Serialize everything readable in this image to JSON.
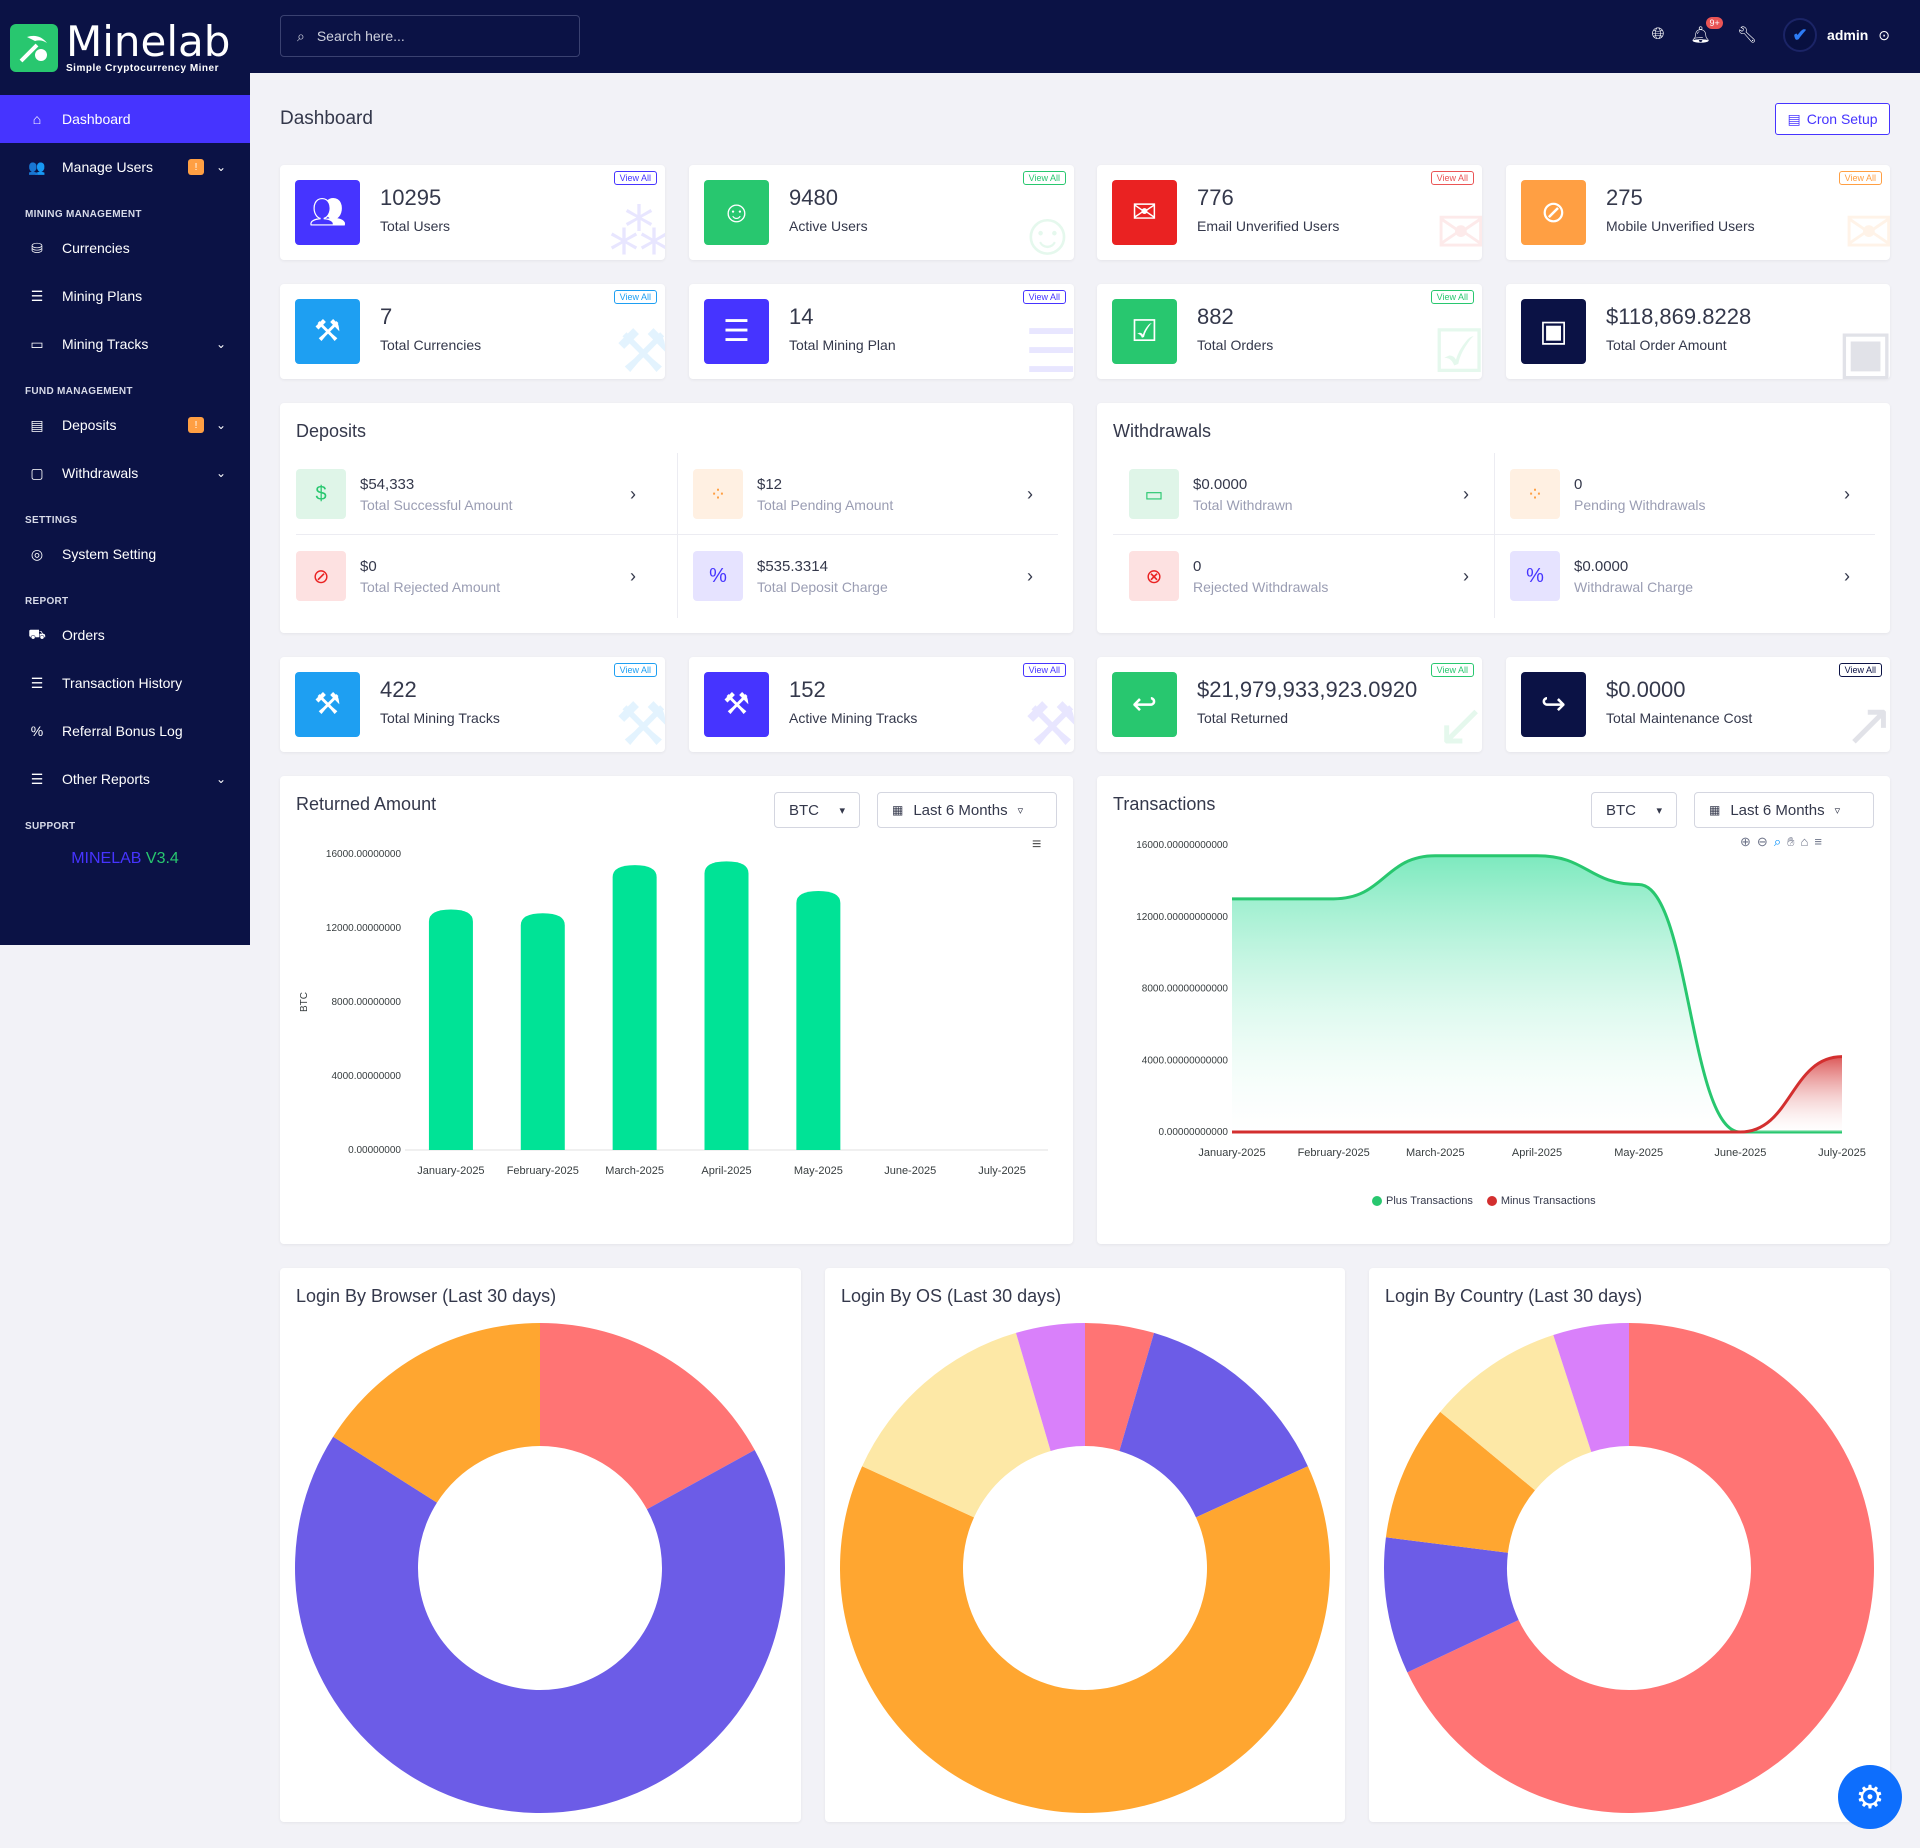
{
  "brand": {
    "name": "Minelab",
    "tagline": "Simple Cryptocurrency Miner",
    "version_name": "MINELAB",
    "version_num": "V3.4"
  },
  "sidebar": {
    "dashboard": "Dashboard",
    "manage_users": "Manage Users",
    "badge": "!",
    "sec_mining": "MINING MANAGEMENT",
    "currencies": "Currencies",
    "mining_plans": "Mining Plans",
    "mining_tracks": "Mining Tracks",
    "sec_fund": "FUND MANAGEMENT",
    "deposits": "Deposits",
    "withdrawals": "Withdrawals",
    "sec_settings": "SETTINGS",
    "system_setting": "System Setting",
    "sec_report": "REPORT",
    "orders": "Orders",
    "transaction_history": "Transaction History",
    "referral_bonus_log": "Referral Bonus Log",
    "other_reports": "Other Reports",
    "sec_support": "SUPPORT"
  },
  "header": {
    "search_placeholder": "Search here...",
    "notif_count": "9+",
    "user": "admin"
  },
  "page": {
    "title": "Dashboard",
    "cron_button": "Cron Setup"
  },
  "view_all": "View All",
  "stats": {
    "total_users": {
      "value": "10295",
      "label": "Total Users"
    },
    "active_users": {
      "value": "9480",
      "label": "Active Users"
    },
    "email_unverified": {
      "value": "776",
      "label": "Email Unverified Users"
    },
    "mobile_unverified": {
      "value": "275",
      "label": "Mobile Unverified Users"
    },
    "total_currencies": {
      "value": "7",
      "label": "Total Currencies"
    },
    "total_mining_plan": {
      "value": "14",
      "label": "Total Mining Plan"
    },
    "total_orders": {
      "value": "882",
      "label": "Total Orders"
    },
    "total_order_amount": {
      "value": "$118,869.8228",
      "label": "Total Order Amount"
    },
    "total_mining_tracks": {
      "value": "422",
      "label": "Total Mining Tracks"
    },
    "active_mining_tracks": {
      "value": "152",
      "label": "Active Mining Tracks"
    },
    "total_returned": {
      "value": "$21,979,933,923.0920",
      "label": "Total Returned"
    },
    "total_maintenance": {
      "value": "$0.0000",
      "label": "Total Maintenance Cost"
    }
  },
  "deposits": {
    "title": "Deposits",
    "successful": {
      "value": "$54,333",
      "label": "Total Successful Amount"
    },
    "pending": {
      "value": "$12",
      "label": "Total Pending Amount"
    },
    "rejected": {
      "value": "$0",
      "label": "Total Rejected Amount"
    },
    "charge": {
      "value": "$535.3314",
      "label": "Total Deposit Charge"
    }
  },
  "withdrawals": {
    "title": "Withdrawals",
    "withdrawn": {
      "value": "$0.0000",
      "label": "Total Withdrawn"
    },
    "pending": {
      "value": "0",
      "label": "Pending Withdrawals"
    },
    "rejected": {
      "value": "0",
      "label": "Rejected Withdrawals"
    },
    "charge": {
      "value": "$0.0000",
      "label": "Withdrawal Charge"
    }
  },
  "returned_panel": {
    "title": "Returned Amount",
    "currency": "BTC",
    "range": "Last 6 Months"
  },
  "transactions_panel": {
    "title": "Transactions",
    "currency": "BTC",
    "range": "Last 6 Months"
  },
  "login_browser": {
    "title": "Login By Browser (Last 30 days)"
  },
  "login_os": {
    "title": "Login By OS (Last 30 days)"
  },
  "login_country": {
    "title": "Login By Country (Last 30 days)"
  },
  "chart_data": [
    {
      "type": "bar",
      "title": "Returned Amount",
      "ylabel": "BTC",
      "categories": [
        "January-2025",
        "February-2025",
        "March-2025",
        "April-2025",
        "May-2025",
        "June-2025",
        "July-2025"
      ],
      "values": [
        13000,
        12800,
        15400,
        15600,
        14000,
        0,
        0
      ],
      "ylim": [
        0,
        16000
      ],
      "yticks": [
        "0.00000000",
        "4000.00000000",
        "8000.00000000",
        "12000.00000000",
        "16000.00000000"
      ],
      "color": "#00e396"
    },
    {
      "type": "area",
      "title": "Transactions",
      "categories": [
        "January-2025",
        "February-2025",
        "March-2025",
        "April-2025",
        "May-2025",
        "June-2025",
        "July-2025"
      ],
      "ylim": [
        0,
        16000
      ],
      "yticks": [
        "0.00000000000",
        "4000.00000000000",
        "8000.00000000000",
        "12000.00000000000",
        "16000.00000000000"
      ],
      "series": [
        {
          "name": "Plus Transactions",
          "color": "#28c76f",
          "values": [
            13000,
            13000,
            15400,
            15400,
            13800,
            0,
            0
          ]
        },
        {
          "name": "Minus Transactions",
          "color": "#d32f2f",
          "values": [
            0,
            0,
            0,
            0,
            0,
            0,
            4200
          ]
        }
      ]
    },
    {
      "type": "pie",
      "title": "Login By Browser (Last 30 days)",
      "values": [
        17,
        67,
        16
      ],
      "colors": [
        "#ff7474",
        "#6c5ce7",
        "#ffa630"
      ]
    },
    {
      "type": "pie",
      "title": "Login By OS (Last 30 days)",
      "values": [
        4,
        12,
        56,
        12,
        4
      ],
      "colors": [
        "#ff7474",
        "#6c5ce7",
        "#ffa630",
        "#fde8a6",
        "#d980fa"
      ]
    },
    {
      "type": "pie",
      "title": "Login By Country (Last 30 days)",
      "values": [
        68,
        9,
        9,
        9,
        5
      ],
      "colors": [
        "#ff7474",
        "#6c5ce7",
        "#ffa630",
        "#fde8a6",
        "#d980fa"
      ]
    }
  ]
}
